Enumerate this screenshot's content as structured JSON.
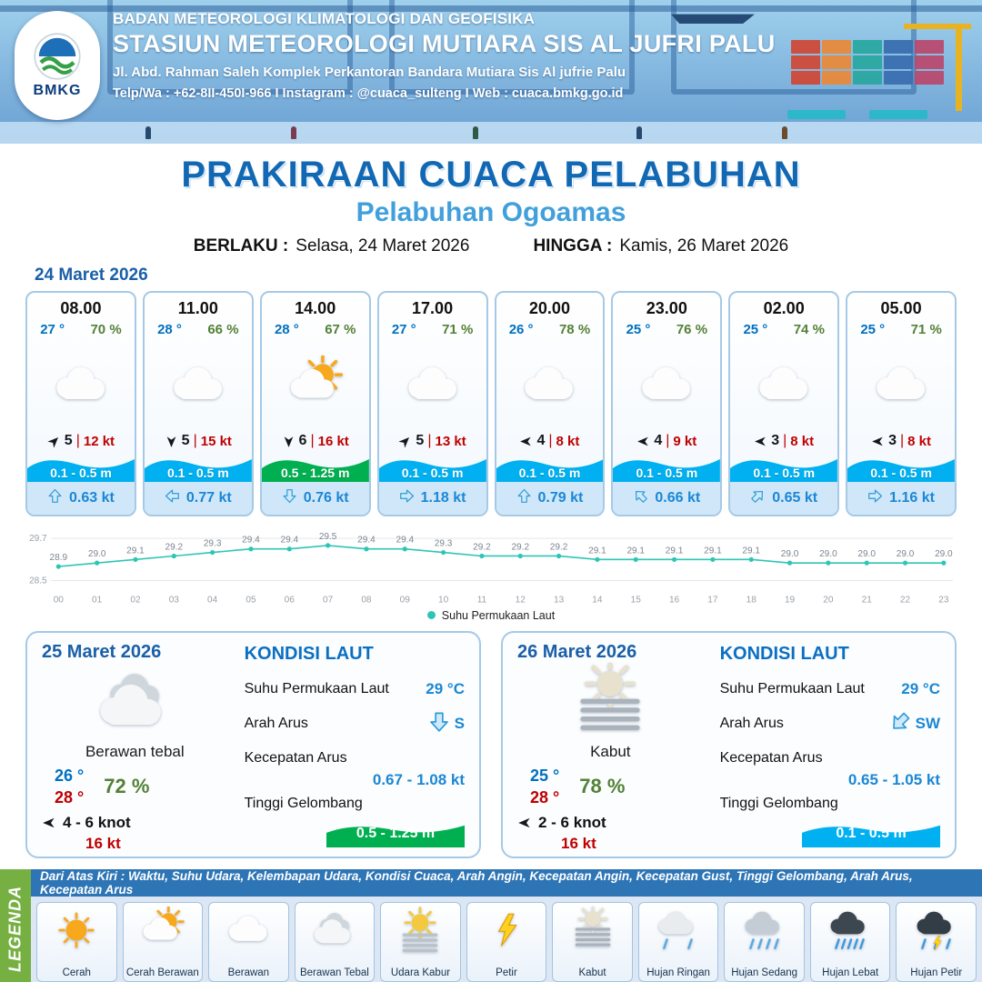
{
  "header": {
    "logo_text": "BMKG",
    "agency": "BADAN METEOROLOGI KLIMATOLOGI DAN GEOFISIKA",
    "station": "STASIUN METEOROLOGI MUTIARA SIS AL JUFRI PALU",
    "address": "Jl. Abd. Rahman Saleh Komplek Perkantoran Bandara Mutiara Sis Al jufrie Palu",
    "contact": "Telp/Wa : +62-8II-450I-966  I  Instagram : @cuaca_sulteng  I  Web : cuaca.bmkg.go.id"
  },
  "title": {
    "main": "PRAKIRAAN CUACA PELABUHAN",
    "subtitle": "Pelabuhan Ogoamas",
    "berlaku_label": "BERLAKU :",
    "berlaku_value": "Selasa, 24 Maret 2026",
    "hingga_label": "HINGGA :",
    "hingga_value": "Kamis, 26 Maret 2026"
  },
  "forecast_day": {
    "date": "24 Maret 2026",
    "sep": "|",
    "cards": [
      {
        "time": "08.00",
        "temp": "27 °",
        "humidity": "70 %",
        "icon": "berawan",
        "wind_dir_deg": 45,
        "wind_speed": "5",
        "gust": "12 kt",
        "wave": "0.1 - 0.5 m",
        "wave_color": "#00b0f0",
        "current_dir_deg": 0,
        "current": "0.63 kt"
      },
      {
        "time": "11.00",
        "temp": "28 °",
        "humidity": "66 %",
        "icon": "berawan",
        "wind_dir_deg": 180,
        "wind_speed": "5",
        "gust": "15 kt",
        "wave": "0.1 - 0.5 m",
        "wave_color": "#00b0f0",
        "current_dir_deg": 270,
        "current": "0.77 kt"
      },
      {
        "time": "14.00",
        "temp": "28 °",
        "humidity": "67 %",
        "icon": "cerah-berawan",
        "wind_dir_deg": 180,
        "wind_speed": "6",
        "gust": "16 kt",
        "wave": "0.5 - 1.25 m",
        "wave_color": "#00b050",
        "current_dir_deg": 180,
        "current": "0.76 kt"
      },
      {
        "time": "17.00",
        "temp": "27 °",
        "humidity": "71 %",
        "icon": "berawan",
        "wind_dir_deg": 45,
        "wind_speed": "5",
        "gust": "13 kt",
        "wave": "0.1 - 0.5 m",
        "wave_color": "#00b0f0",
        "current_dir_deg": 90,
        "current": "1.18 kt"
      },
      {
        "time": "20.00",
        "temp": "26 °",
        "humidity": "78 %",
        "icon": "berawan",
        "wind_dir_deg": 270,
        "wind_speed": "4",
        "gust": "8 kt",
        "wave": "0.1 - 0.5 m",
        "wave_color": "#00b0f0",
        "current_dir_deg": 0,
        "current": "0.79 kt"
      },
      {
        "time": "23.00",
        "temp": "25 °",
        "humidity": "76 %",
        "icon": "berawan",
        "wind_dir_deg": 270,
        "wind_speed": "4",
        "gust": "9 kt",
        "wave": "0.1 - 0.5 m",
        "wave_color": "#00b0f0",
        "current_dir_deg": 315,
        "current": "0.66 kt"
      },
      {
        "time": "02.00",
        "temp": "25 °",
        "humidity": "74 %",
        "icon": "berawan",
        "wind_dir_deg": 270,
        "wind_speed": "3",
        "gust": "8 kt",
        "wave": "0.1 - 0.5 m",
        "wave_color": "#00b0f0",
        "current_dir_deg": 45,
        "current": "0.65 kt"
      },
      {
        "time": "05.00",
        "temp": "25 °",
        "humidity": "71 %",
        "icon": "berawan",
        "wind_dir_deg": 270,
        "wind_speed": "3",
        "gust": "8 kt",
        "wave": "0.1 - 0.5 m",
        "wave_color": "#00b0f0",
        "current_dir_deg": 90,
        "current": "1.16 kt"
      }
    ]
  },
  "chart_data": {
    "type": "line",
    "series_name": "Suhu Permukaan Laut",
    "x": [
      "00",
      "01",
      "02",
      "03",
      "04",
      "05",
      "06",
      "07",
      "08",
      "09",
      "10",
      "11",
      "12",
      "13",
      "14",
      "15",
      "16",
      "17",
      "18",
      "19",
      "20",
      "21",
      "22",
      "23"
    ],
    "values": [
      28.9,
      29.0,
      29.1,
      29.2,
      29.3,
      29.4,
      29.4,
      29.5,
      29.4,
      29.4,
      29.3,
      29.2,
      29.2,
      29.2,
      29.1,
      29.1,
      29.1,
      29.1,
      29.1,
      29.0,
      29.0,
      29.0,
      29.0,
      29.0
    ],
    "ylim": [
      28.5,
      29.7
    ],
    "line_color": "#2fc5b5",
    "grid": true,
    "legend_position": "bottom"
  },
  "daily": [
    {
      "date": "25 Maret 2026",
      "icon": "berawan-tebal",
      "condition": "Berawan tebal",
      "temp_min": "26 °",
      "temp_max": "28 °",
      "humidity": "72 %",
      "wind_dir_deg": 270,
      "wind": "4  - 6 knot",
      "gust": "16 kt",
      "sea": {
        "title": "KONDISI LAUT",
        "sst_label": "Suhu Permukaan Laut",
        "sst": "29 °C",
        "current_dir_label": "Arah Arus",
        "current_dir": "S",
        "current_dir_deg": 180,
        "current_speed_label": "Kecepatan Arus",
        "current_speed": "0.67  - 1.08 kt",
        "wave_label": "Tinggi Gelombang",
        "wave": "0.5 - 1.25 m",
        "wave_color": "#00b050"
      }
    },
    {
      "date": "26 Maret 2026",
      "icon": "kabut",
      "condition": "Kabut",
      "temp_min": "25 °",
      "temp_max": "28 °",
      "humidity": "78 %",
      "wind_dir_deg": 270,
      "wind": "2  - 6 knot",
      "gust": "16 kt",
      "sea": {
        "title": "KONDISI LAUT",
        "sst_label": "Suhu Permukaan Laut",
        "sst": "29 °C",
        "current_dir_label": "Arah Arus",
        "current_dir": "SW",
        "current_dir_deg": 225,
        "current_speed_label": "Kecepatan Arus",
        "current_speed": "0.65  - 1.05 kt",
        "wave_label": "Tinggi Gelombang",
        "wave": "0.1 - 0.5 m",
        "wave_color": "#00b0f0"
      }
    }
  ],
  "legend": {
    "label": "LEGENDA",
    "description": "Dari Atas Kiri : Waktu, Suhu Udara, Kelembapan Udara, Kondisi Cuaca, Arah Angin, Kecepatan Angin, Kecepatan Gust, Tinggi Gelombang, Arah Arus, Kecepatan Arus",
    "items": [
      {
        "label": "Cerah",
        "icon": "cerah"
      },
      {
        "label": "Cerah Berawan",
        "icon": "cerah-berawan"
      },
      {
        "label": "Berawan",
        "icon": "berawan"
      },
      {
        "label": "Berawan Tebal",
        "icon": "berawan-tebal"
      },
      {
        "label": "Udara Kabur",
        "icon": "udara-kabur"
      },
      {
        "label": "Petir",
        "icon": "petir"
      },
      {
        "label": "Kabut",
        "icon": "kabut"
      },
      {
        "label": "Hujan Ringan",
        "icon": "hujan-ringan"
      },
      {
        "label": "Hujan Sedang",
        "icon": "hujan-sedang"
      },
      {
        "label": "Hujan Lebat",
        "icon": "hujan-lebat"
      },
      {
        "label": "Hujan Petir",
        "icon": "hujan-petir"
      }
    ]
  }
}
